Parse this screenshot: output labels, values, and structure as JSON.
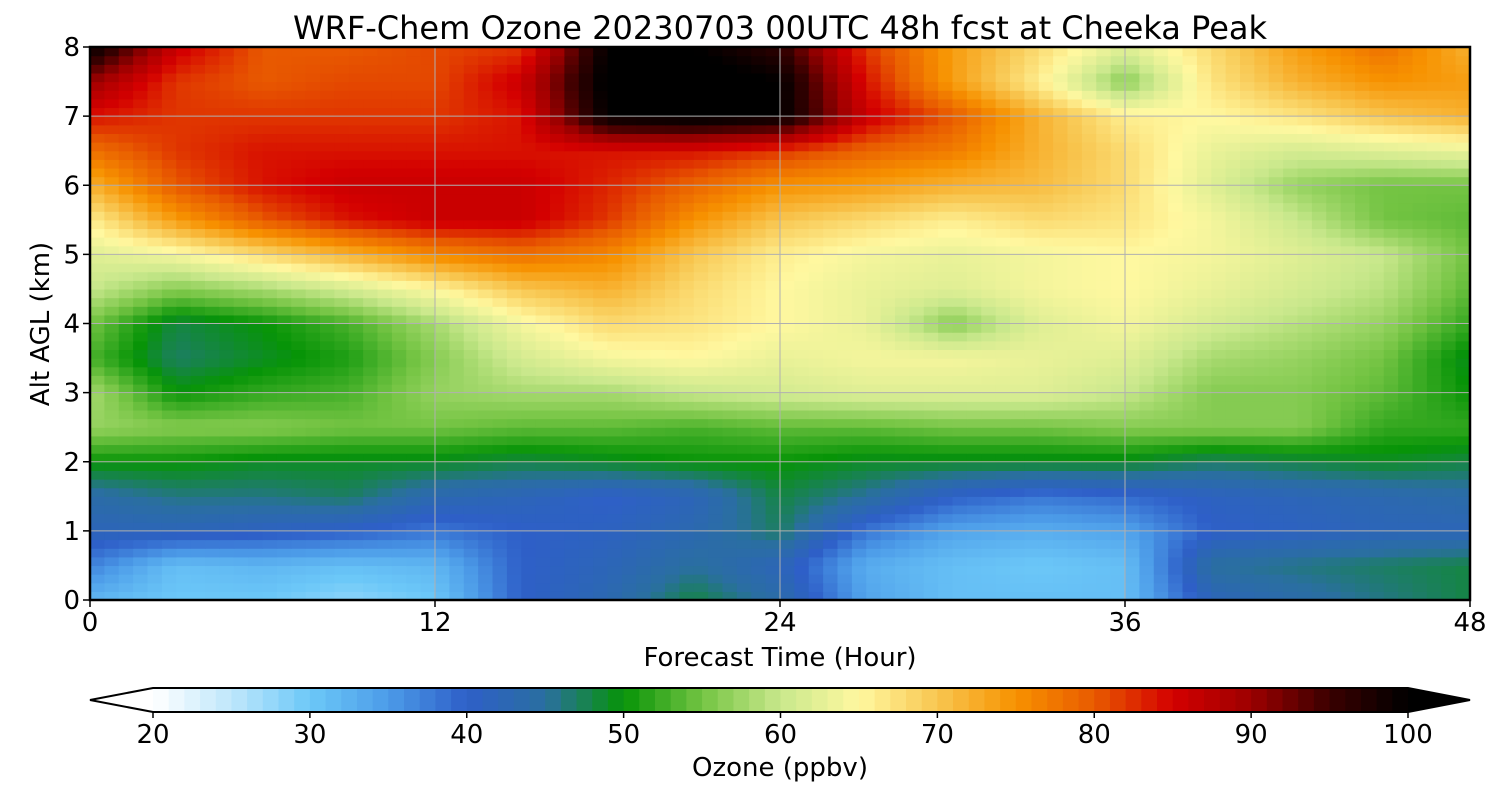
{
  "chart_data": {
    "type": "heatmap",
    "title": "WRF-Chem Ozone  20230703 00UTC 48h fcst at Cheeka Peak",
    "xlabel": "Forecast Time (Hour)",
    "ylabel": "Alt AGL (km)",
    "xlim": [
      0,
      48
    ],
    "ylim": [
      0,
      8
    ],
    "x_ticks": [
      "0",
      "12",
      "24",
      "36",
      "48"
    ],
    "y_ticks": [
      "0",
      "1",
      "2",
      "3",
      "4",
      "5",
      "6",
      "7",
      "8"
    ],
    "grid": true,
    "colorbar": {
      "label": "Ozone  (ppbv)",
      "range": [
        20,
        100
      ],
      "ticks": [
        "20",
        "30",
        "40",
        "50",
        "60",
        "70",
        "80",
        "90",
        "100"
      ],
      "extend": "both",
      "colors": [
        "#ffffff",
        "#bfe7fb",
        "#6cc8f8",
        "#4c9be8",
        "#2e5fc8",
        "#2a6fa0",
        "#079407",
        "#74c443",
        "#c9e88c",
        "#fff8a0",
        "#f8c650",
        "#f79200",
        "#e85a00",
        "#d40000",
        "#9c0000",
        "#3a0000",
        "#000000"
      ]
    },
    "x": [
      0,
      3,
      6,
      9,
      12,
      15,
      18,
      21,
      24,
      27,
      30,
      33,
      36,
      39,
      42,
      45,
      48
    ],
    "y": [
      0,
      0.5,
      1,
      1.5,
      2,
      2.5,
      3,
      3.5,
      4,
      4.5,
      5,
      5.5,
      6,
      6.5,
      7,
      7.5,
      8
    ],
    "z": [
      [
        32,
        30,
        30,
        28,
        30,
        40,
        43,
        48,
        44,
        34,
        31,
        31,
        31,
        42,
        44,
        46,
        48
      ],
      [
        37,
        31,
        32,
        31,
        32,
        40,
        42,
        45,
        42,
        33,
        31,
        30,
        31,
        45,
        46,
        47,
        48
      ],
      [
        42,
        42,
        41,
        40,
        38,
        40,
        41,
        43,
        47,
        38,
        34,
        33,
        34,
        40,
        41,
        42,
        42
      ],
      [
        44,
        46,
        46,
        47,
        43,
        42,
        40,
        42,
        48,
        45,
        40,
        38,
        39,
        41,
        42,
        43,
        44
      ],
      [
        50,
        50,
        49,
        49,
        49,
        48,
        49,
        50,
        50,
        49,
        49,
        49,
        49,
        47,
        48,
        49,
        48
      ],
      [
        57,
        56,
        56,
        55,
        55,
        54,
        54,
        53,
        54,
        54,
        55,
        55,
        56,
        56,
        56,
        52,
        52
      ],
      [
        58,
        50,
        52,
        53,
        57,
        58,
        58,
        60,
        61,
        62,
        62,
        62,
        60,
        56,
        56,
        54,
        50
      ],
      [
        53,
        47,
        49,
        51,
        56,
        61,
        64,
        65,
        63,
        64,
        64,
        63,
        62,
        58,
        57,
        55,
        49
      ],
      [
        55,
        48,
        50,
        53,
        58,
        64,
        68,
        67,
        65,
        63,
        56,
        62,
        64,
        61,
        59,
        57,
        52
      ],
      [
        60,
        56,
        58,
        61,
        65,
        70,
        72,
        68,
        65,
        63,
        62,
        64,
        65,
        63,
        61,
        59,
        54
      ],
      [
        62,
        64,
        68,
        72,
        76,
        78,
        76,
        70,
        66,
        64,
        63,
        64,
        65,
        64,
        62,
        60,
        55
      ],
      [
        66,
        74,
        80,
        84,
        86,
        86,
        82,
        75,
        70,
        68,
        66,
        68,
        67,
        64,
        60,
        55,
        54
      ],
      [
        72,
        80,
        84,
        86,
        86,
        86,
        83,
        79,
        75,
        74,
        72,
        71,
        68,
        62,
        57,
        55,
        55
      ],
      [
        78,
        82,
        84,
        84,
        84,
        84,
        84,
        84,
        82,
        79,
        77,
        72,
        68,
        63,
        61,
        62,
        63
      ],
      [
        84,
        82,
        82,
        82,
        82,
        84,
        100,
        101,
        100,
        86,
        80,
        72,
        66,
        65,
        67,
        70,
        72
      ],
      [
        90,
        82,
        80,
        81,
        81,
        86,
        101,
        102,
        100,
        84,
        74,
        66,
        56,
        67,
        72,
        75,
        74
      ],
      [
        100,
        86,
        80,
        80,
        81,
        82,
        100,
        100,
        96,
        82,
        74,
        68,
        62,
        68,
        74,
        78,
        72
      ]
    ]
  }
}
